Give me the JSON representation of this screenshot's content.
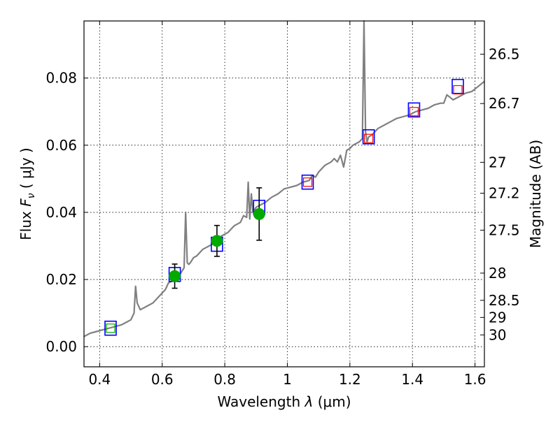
{
  "chart_data": {
    "type": "line",
    "xlabel": "Wavelength  λ (μm)",
    "xlabel_parts": {
      "prefix": "Wavelength ",
      "symbol": "λ",
      "suffix": "(μm)"
    },
    "ylabel": "Flux  Fν  ( μJy )",
    "ylabel_parts": {
      "word": "Flux",
      "symbol": "F",
      "sub": "ν",
      "unit": "( μJy )"
    },
    "y2label": "Magnitude (AB)",
    "xlim": [
      0.35,
      1.63
    ],
    "ylim": [
      -0.006,
      0.097
    ],
    "grid": true,
    "xticks": [
      {
        "value": 0.4,
        "label": "0.4"
      },
      {
        "value": 0.6,
        "label": "0.6"
      },
      {
        "value": 0.8,
        "label": "0.8"
      },
      {
        "value": 1.0,
        "label": "1"
      },
      {
        "value": 1.2,
        "label": "1.2"
      },
      {
        "value": 1.4,
        "label": "1.4"
      },
      {
        "value": 1.6,
        "label": "1.6"
      }
    ],
    "yticks": [
      {
        "value": 0.0,
        "label": "0.00"
      },
      {
        "value": 0.02,
        "label": "0.02"
      },
      {
        "value": 0.04,
        "label": "0.04"
      },
      {
        "value": 0.06,
        "label": "0.06"
      },
      {
        "value": 0.08,
        "label": "0.08"
      }
    ],
    "y2ticks": [
      {
        "label": "26.5",
        "flux": 0.0871
      },
      {
        "label": "26.7",
        "flux": 0.0724
      },
      {
        "label": "27",
        "flux": 0.0549
      },
      {
        "label": "27.2",
        "flux": 0.0457
      },
      {
        "label": "27.5",
        "flux": 0.0347
      },
      {
        "label": "28",
        "flux": 0.0219
      },
      {
        "label": "28.5",
        "flux": 0.0138
      },
      {
        "label": "29",
        "flux": 0.0087
      },
      {
        "label": "30",
        "flux": 0.0035
      }
    ],
    "series": [
      {
        "kind": "spectrum",
        "color": "#808080",
        "x": [
          0.35,
          0.37,
          0.39,
          0.41,
          0.43,
          0.45,
          0.47,
          0.49,
          0.5,
          0.51,
          0.515,
          0.52,
          0.53,
          0.55,
          0.57,
          0.59,
          0.61,
          0.62,
          0.63,
          0.64,
          0.65,
          0.66,
          0.67,
          0.675,
          0.68,
          0.685,
          0.69,
          0.7,
          0.71,
          0.72,
          0.73,
          0.75,
          0.77,
          0.79,
          0.81,
          0.83,
          0.85,
          0.86,
          0.87,
          0.875,
          0.88,
          0.885,
          0.89,
          0.9,
          0.91,
          0.93,
          0.95,
          0.97,
          0.99,
          1.01,
          1.03,
          1.05,
          1.07,
          1.08,
          1.09,
          1.1,
          1.11,
          1.12,
          1.13,
          1.14,
          1.15,
          1.16,
          1.17,
          1.18,
          1.19,
          1.2,
          1.21,
          1.22,
          1.23,
          1.24,
          1.245,
          1.25,
          1.255,
          1.26,
          1.27,
          1.29,
          1.31,
          1.33,
          1.35,
          1.37,
          1.39,
          1.41,
          1.43,
          1.45,
          1.47,
          1.49,
          1.5,
          1.51,
          1.53,
          1.55,
          1.57,
          1.59,
          1.61,
          1.63
        ],
        "y": [
          0.003,
          0.004,
          0.0045,
          0.005,
          0.0055,
          0.006,
          0.0065,
          0.0075,
          0.008,
          0.01,
          0.018,
          0.013,
          0.011,
          0.012,
          0.013,
          0.015,
          0.017,
          0.019,
          0.0195,
          0.02,
          0.021,
          0.022,
          0.0235,
          0.04,
          0.025,
          0.0245,
          0.025,
          0.0265,
          0.027,
          0.028,
          0.029,
          0.03,
          0.031,
          0.033,
          0.034,
          0.036,
          0.037,
          0.039,
          0.0385,
          0.049,
          0.038,
          0.0455,
          0.04,
          0.0415,
          0.042,
          0.043,
          0.0445,
          0.0455,
          0.047,
          0.0475,
          0.048,
          0.049,
          0.0495,
          0.051,
          0.0505,
          0.052,
          0.053,
          0.054,
          0.0545,
          0.055,
          0.056,
          0.055,
          0.057,
          0.0535,
          0.0585,
          0.059,
          0.06,
          0.0605,
          0.061,
          0.062,
          0.097,
          0.064,
          0.061,
          0.0625,
          0.063,
          0.065,
          0.066,
          0.067,
          0.068,
          0.0685,
          0.069,
          0.07,
          0.0705,
          0.071,
          0.072,
          0.0725,
          0.0725,
          0.075,
          0.0735,
          0.0745,
          0.0755,
          0.076,
          0.0775,
          0.079
        ]
      },
      {
        "kind": "photometry-green",
        "color": "#00aa00",
        "x": [
          0.64,
          0.775,
          0.91
        ],
        "y": [
          0.021,
          0.0315,
          0.0395
        ],
        "yerr": [
          0.0036,
          0.0046,
          0.0078
        ]
      },
      {
        "kind": "model-blue-squares",
        "color": "#0000ff",
        "x": [
          0.435,
          0.64,
          0.775,
          0.91,
          1.065,
          1.26,
          1.405,
          1.545
        ],
        "y": [
          0.0055,
          0.0215,
          0.0305,
          0.0415,
          0.049,
          0.0625,
          0.0705,
          0.0775
        ]
      },
      {
        "kind": "photometry-red-squares",
        "color": "#ff0000",
        "x": [
          1.065,
          1.26,
          1.405,
          1.545
        ],
        "y": [
          0.049,
          0.062,
          0.07,
          0.0765
        ]
      },
      {
        "kind": "model-green-squares",
        "color": "#00aa00",
        "x": [
          0.435
        ],
        "y": [
          0.0055
        ]
      }
    ]
  }
}
